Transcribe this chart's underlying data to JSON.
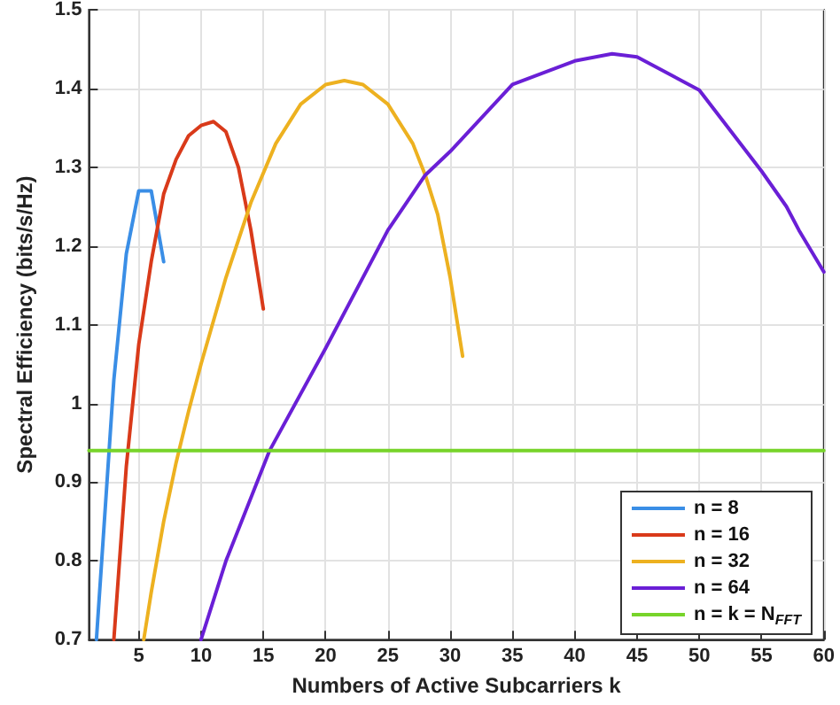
{
  "chart_data": {
    "type": "line",
    "xlabel": "Numbers of Active Subcarriers k",
    "ylabel": "Spectral Efficiency (bits/s/Hz)",
    "xlim": [
      1,
      60
    ],
    "xticks": [
      5,
      10,
      15,
      20,
      25,
      30,
      35,
      40,
      45,
      50,
      55,
      60
    ],
    "ylim": [
      0.7,
      1.5
    ],
    "yticks": [
      0.7,
      0.8,
      0.9,
      1,
      1.1,
      1.2,
      1.3,
      1.4,
      1.5
    ],
    "grid": true,
    "legend": "bottom right",
    "marker": "none",
    "line_style": "solid",
    "series": [
      {
        "name": "n = 8",
        "color": "#3a8ee6",
        "x": [
          1.6,
          3,
          4,
          5,
          6,
          7
        ],
        "values": [
          0.7,
          1.03,
          1.19,
          1.27,
          1.27,
          1.18
        ]
      },
      {
        "name": "n = 16",
        "color": "#d93a1a",
        "x": [
          3,
          4,
          5,
          6,
          7,
          8,
          9,
          10,
          11,
          12,
          13,
          14,
          15
        ],
        "values": [
          0.7,
          0.92,
          1.075,
          1.18,
          1.266,
          1.31,
          1.34,
          1.353,
          1.358,
          1.345,
          1.3,
          1.22,
          1.12
        ]
      },
      {
        "name": "n = 32",
        "color": "#edb120",
        "x": [
          5.4,
          6,
          7,
          8,
          9,
          10,
          12,
          14,
          16,
          18,
          20,
          21.5,
          23,
          25,
          27,
          28,
          29,
          30,
          31
        ],
        "values": [
          0.7,
          0.76,
          0.85,
          0.925,
          0.99,
          1.05,
          1.16,
          1.255,
          1.33,
          1.38,
          1.405,
          1.41,
          1.405,
          1.38,
          1.33,
          1.29,
          1.24,
          1.16,
          1.06
        ]
      },
      {
        "name": "n = 64",
        "color": "#6a1fd6",
        "x": [
          10,
          12,
          15.5,
          20,
          25,
          28,
          30,
          35,
          40,
          43,
          45,
          50,
          55,
          57,
          58,
          60
        ],
        "values": [
          0.7,
          0.8,
          0.94,
          1.07,
          1.22,
          1.29,
          1.32,
          1.405,
          1.435,
          1.444,
          1.44,
          1.398,
          1.295,
          1.25,
          1.22,
          1.167
        ]
      },
      {
        "name": "n = k = N$_{FFT}$",
        "color": "#77d42a",
        "x": [
          1,
          60
        ],
        "values": [
          0.94,
          0.94
        ]
      }
    ]
  }
}
